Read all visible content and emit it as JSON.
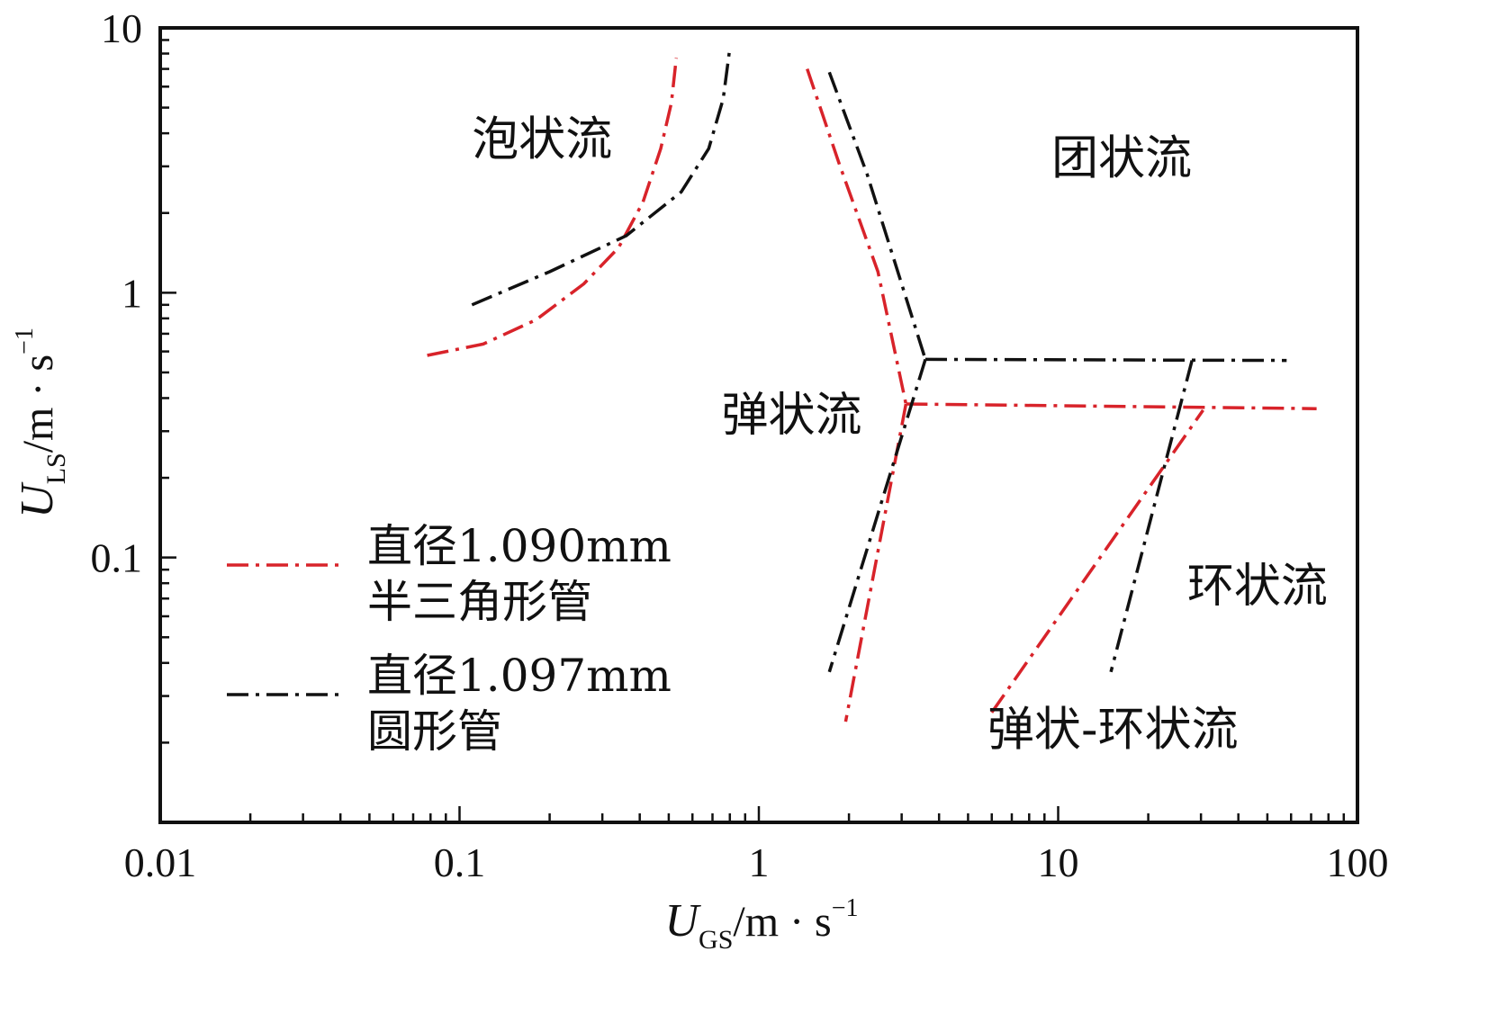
{
  "chart_data": {
    "type": "line",
    "xscale": "log",
    "yscale": "log",
    "xlim": [
      0.01,
      100
    ],
    "ylim": [
      0.01,
      10
    ],
    "grid": false,
    "legend_position": "left",
    "x_ticks": [
      "0.01",
      "0.1",
      "1",
      "10",
      "100"
    ],
    "y_ticks": [
      "0.1",
      "1",
      "10"
    ],
    "x_tick_values": [
      0.01,
      0.1,
      1,
      10,
      100
    ],
    "y_tick_values": [
      0.1,
      1,
      10
    ],
    "xlabel": {
      "var": "U",
      "sub": "GS",
      "unit": "/m · s",
      "exp": "−1"
    },
    "ylabel": {
      "var": "U",
      "sub": "LS",
      "unit": "/m · s",
      "exp": "−1"
    },
    "regions": [
      {
        "label": "泡状流",
        "x": 0.11,
        "y": 3.3
      },
      {
        "label": "团状流",
        "x": 9.5,
        "y": 2.8
      },
      {
        "label": "弹状流",
        "x": 0.75,
        "y": 0.3
      },
      {
        "label": "环状流",
        "x": 27,
        "y": 0.068
      },
      {
        "label": "弹状-环状流",
        "x": 5.8,
        "y": 0.0195
      }
    ],
    "series": [
      {
        "name": "直径1.090mm\n半三角形管",
        "color": "#d8232a",
        "curves": [
          [
            [
              0.078,
              0.58
            ],
            [
              0.12,
              0.64
            ],
            [
              0.18,
              0.79
            ],
            [
              0.26,
              1.08
            ],
            [
              0.34,
              1.48
            ],
            [
              0.41,
              2.2
            ],
            [
              0.47,
              3.5
            ],
            [
              0.51,
              5.2
            ],
            [
              0.53,
              7.7
            ]
          ],
          [
            [
              1.45,
              7.0
            ],
            [
              1.85,
              3.1
            ],
            [
              2.5,
              1.2
            ],
            [
              3.1,
              0.38
            ]
          ],
          [
            [
              3.1,
              0.38
            ],
            [
              73,
              0.365
            ]
          ],
          [
            [
              3.1,
              0.38
            ],
            [
              1.95,
              0.024
            ]
          ],
          [
            [
              6.0,
              0.026
            ],
            [
              30.5,
              0.36
            ]
          ]
        ]
      },
      {
        "name": "直径1.097mm\n圆形管",
        "color": "#111111",
        "curves": [
          [
            [
              0.11,
              0.9
            ],
            [
              0.2,
              1.2
            ],
            [
              0.36,
              1.64
            ],
            [
              0.55,
              2.4
            ],
            [
              0.68,
              3.5
            ],
            [
              0.76,
              5.4
            ],
            [
              0.8,
              8.4
            ]
          ],
          [
            [
              1.72,
              6.8
            ],
            [
              2.3,
              2.8
            ],
            [
              3.6,
              0.56
            ]
          ],
          [
            [
              3.6,
              0.56
            ],
            [
              58,
              0.555
            ]
          ],
          [
            [
              3.6,
              0.56
            ],
            [
              1.72,
              0.037
            ]
          ],
          [
            [
              28,
              0.555
            ],
            [
              15,
              0.037
            ]
          ]
        ]
      }
    ]
  }
}
